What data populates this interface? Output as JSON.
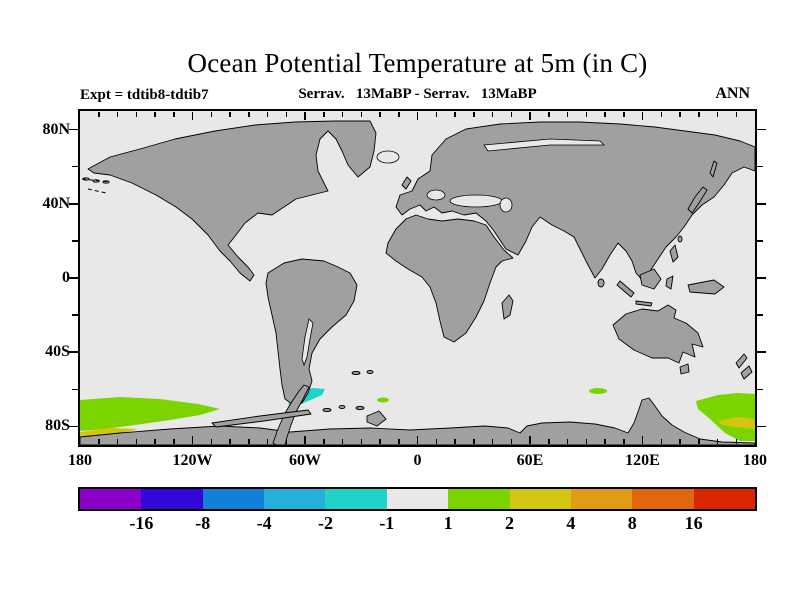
{
  "title": "Ocean Potential Temperature at 5m (in C)",
  "header": {
    "experiment": "Expt = tdtib8-tdtib7",
    "comparison": "Serrav.   13MaBP - Serrav.   13MaBP",
    "season": "ANN"
  },
  "axes": {
    "lat_labels": [
      {
        "label": "80N",
        "lat": 80
      },
      {
        "label": "40N",
        "lat": 40
      },
      {
        "label": "0",
        "lat": 0
      },
      {
        "label": "40S",
        "lat": -40
      },
      {
        "label": "80S",
        "lat": -80
      }
    ],
    "lon_labels": [
      {
        "label": "180",
        "lon": -180
      },
      {
        "label": "120W",
        "lon": -120
      },
      {
        "label": "60W",
        "lon": -60
      },
      {
        "label": "0",
        "lon": 0
      },
      {
        "label": "60E",
        "lon": 60
      },
      {
        "label": "120E",
        "lon": 120
      },
      {
        "label": "180",
        "lon": 180
      }
    ],
    "lat_tick_step_deg": 20,
    "lon_tick_step_deg": 10
  },
  "colorbar": {
    "boundary_labels": [
      "-16",
      "-8",
      "-4",
      "-2",
      "-1",
      "1",
      "2",
      "4",
      "8",
      "16"
    ],
    "colors": [
      "#8a00c8",
      "#3208d8",
      "#1080d8",
      "#25b0dc",
      "#1ed4c8",
      "#e8e8e8",
      "#7bd400",
      "#d2c612",
      "#e09c14",
      "#e2660e",
      "#dc2600"
    ]
  },
  "colors": {
    "ocean": "#e8e8e8",
    "land": "#a0a0a0",
    "outline": "#000000"
  },
  "chart_data": {
    "type": "heatmap",
    "title": "Ocean Potential Temperature at 5m (in C)",
    "units": "C",
    "season": "ANN",
    "experiment_difference": "tdtib8 - tdtib7",
    "time_period": "Serravallian 13 Ma BP minus Serravallian 13 Ma BP",
    "projection": "equirectangular, lon -180..180, lat -90..90",
    "contour_levels": [
      -16,
      -8,
      -4,
      -2,
      -1,
      1,
      2,
      4,
      8,
      16
    ],
    "background_value_bin": "-1 to 1 (near zero over most of the ocean)",
    "anomaly_regions": [
      {
        "area": "Southern Ocean, 180W-140W, 62S-75S",
        "value_bin": "1 to 2",
        "color": "#7bd400"
      },
      {
        "area": "Southern Ocean, 180W-165W, 76S-80S (streak below green)",
        "value_bin": "2 to 4",
        "color": "#d2c612"
      },
      {
        "area": "NW Weddell Sea east of Antarctic Peninsula, 60W-48W, 60S-67S",
        "value_bin": "-2 to -1",
        "color": "#1ed4c8"
      },
      {
        "area": "South Atlantic sector, ~18W, 67S (small spot)",
        "value_bin": "1 to 2",
        "color": "#7bd400"
      },
      {
        "area": "Indian sector, ~97E, 60S (small spot)",
        "value_bin": "1 to 2",
        "color": "#7bd400"
      },
      {
        "area": "Ross Sea sector, 160E-180, 65S-78S",
        "value_bin": "1 to 2",
        "color": "#7bd400"
      },
      {
        "area": "Ross Sea sector, 168E-180, 72S-76S (inner streak)",
        "value_bin": "2 to 4",
        "color": "#d2c612"
      }
    ]
  }
}
